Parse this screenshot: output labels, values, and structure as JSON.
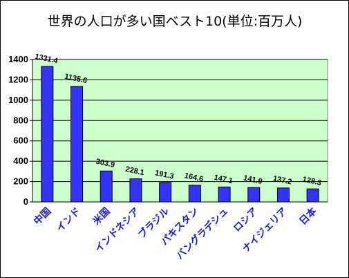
{
  "chart_data": {
    "type": "bar",
    "title": "世界の人口が多い国ベスト10(単位:百万人)",
    "categories": [
      "中国",
      "インド",
      "米国",
      "インドネシア",
      "ブラジル",
      "パキスタン",
      "バングラデシュ",
      "ロシア",
      "ナイジェリア",
      "日本"
    ],
    "values": [
      1331.4,
      1135.6,
      303.9,
      228.1,
      191.3,
      164.6,
      147.1,
      141.9,
      137.2,
      128.3
    ],
    "value_labels": [
      "1331.4",
      "1135.6",
      "303.9",
      "228.1",
      "191.3",
      "164.6",
      "147.1",
      "141.9",
      "137.2",
      "128.3"
    ],
    "yticks": [
      "0",
      "200",
      "400",
      "600",
      "800",
      "1000",
      "1200",
      "1400"
    ],
    "ylim": [
      0,
      1400
    ],
    "grid": true,
    "plot_background": "#ccffcc",
    "bar_color": "#3333ff",
    "category_label_color": "#1a1ae6"
  }
}
